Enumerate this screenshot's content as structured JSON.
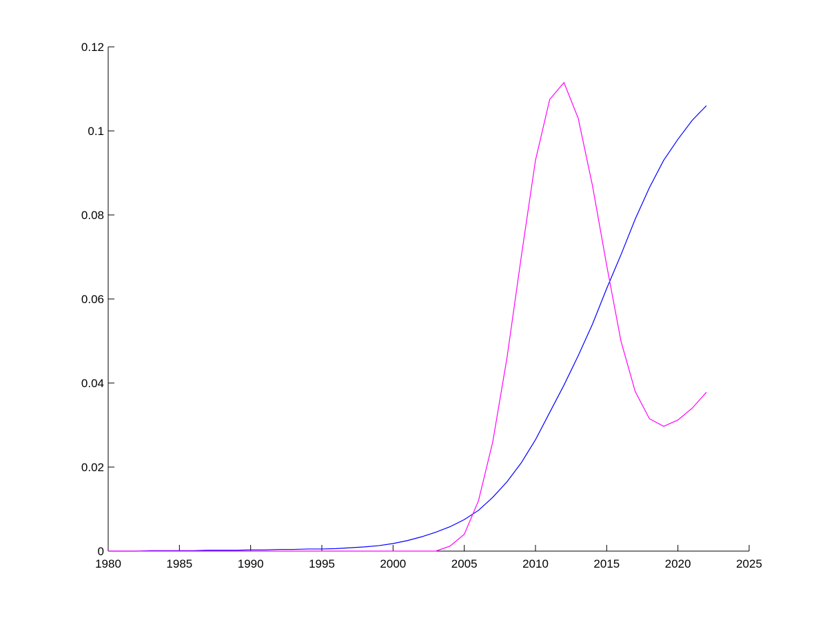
{
  "chart_data": {
    "type": "line",
    "x": [
      1980,
      1981,
      1982,
      1983,
      1984,
      1985,
      1986,
      1987,
      1988,
      1989,
      1990,
      1991,
      1992,
      1993,
      1994,
      1995,
      1996,
      1997,
      1998,
      1999,
      2000,
      2001,
      2002,
      2003,
      2004,
      2005,
      2006,
      2007,
      2008,
      2009,
      2010,
      2011,
      2012,
      2013,
      2014,
      2015,
      2016,
      2017,
      2018,
      2019,
      2020,
      2021,
      2022
    ],
    "series": [
      {
        "color": "#0000ff",
        "values": [
          0,
          0,
          0,
          0.0001,
          0.0001,
          0.0001,
          0.0001,
          0.0002,
          0.0002,
          0.0002,
          0.0003,
          0.0003,
          0.0004,
          0.0004,
          0.0005,
          0.0005,
          0.0006,
          0.0008,
          0.001,
          0.0013,
          0.0018,
          0.0025,
          0.0034,
          0.0045,
          0.0058,
          0.0075,
          0.0097,
          0.0128,
          0.0165,
          0.021,
          0.0265,
          0.033,
          0.0395,
          0.0465,
          0.054,
          0.0625,
          0.0705,
          0.079,
          0.0865,
          0.093,
          0.098,
          0.1025,
          0.106
        ]
      },
      {
        "color": "#ff00ff",
        "values": [
          0,
          0,
          0,
          0,
          0,
          0,
          0,
          0,
          0,
          0,
          0,
          0,
          0,
          0,
          0,
          0,
          0,
          0,
          0,
          0,
          0,
          0,
          0,
          0,
          0.0012,
          0.004,
          0.012,
          0.026,
          0.046,
          0.07,
          0.093,
          0.1075,
          0.1115,
          0.103,
          0.087,
          0.068,
          0.05,
          0.038,
          0.0315,
          0.0297,
          0.0312,
          0.034,
          0.0378
        ]
      }
    ],
    "xlim": [
      1980,
      2025
    ],
    "xticks": [
      1980,
      1985,
      1990,
      1995,
      2000,
      2005,
      2010,
      2015,
      2020,
      2025
    ],
    "ylim": [
      0,
      0.12
    ],
    "yticks": [
      0,
      0.02,
      0.04,
      0.06,
      0.08,
      0.1,
      0.12
    ]
  }
}
